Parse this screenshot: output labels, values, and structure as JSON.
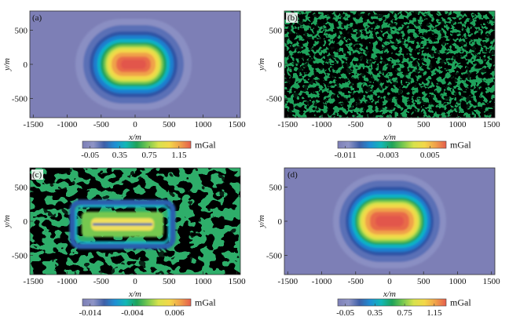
{
  "panels": [
    {
      "label": "(a)",
      "xlabel": "x/m",
      "ylabel": "y/m",
      "xticks": [
        "-1500",
        "-1000",
        "-500",
        "0",
        "500",
        "1000",
        "1500"
      ],
      "yticks": [
        "500",
        "0",
        "-500"
      ],
      "colorbar": {
        "ticks": [
          "-0.05",
          "0.35",
          "0.75",
          "1.15"
        ],
        "unit": "mGal"
      }
    },
    {
      "label": "(b)",
      "xlabel": "x/m",
      "ylabel": "y/m",
      "xticks": [
        "-1500",
        "-1000",
        "-500",
        "0",
        "500",
        "1000",
        "1500"
      ],
      "yticks": [
        "500",
        "0",
        "-500"
      ],
      "colorbar": {
        "ticks": [
          "-0.011",
          "-0.003",
          "0.005"
        ],
        "unit": "mGal"
      }
    },
    {
      "label": "(c)",
      "xlabel": "x/m",
      "ylabel": "y/m",
      "xticks": [
        "-1500",
        "-1000",
        "-500",
        "0",
        "500",
        "1000",
        "1500"
      ],
      "yticks": [
        "500",
        "0",
        "-500"
      ],
      "colorbar": {
        "ticks": [
          "-0.014",
          "-0.004",
          "0.006"
        ],
        "unit": "mGal"
      }
    },
    {
      "label": "(d)",
      "xlabel": "x/m",
      "ylabel": "y/m",
      "xticks": [
        "-1500",
        "-1000",
        "-500",
        "0",
        "500",
        "1000",
        "1500"
      ],
      "yticks": [
        "500",
        "0",
        "-500"
      ],
      "colorbar": {
        "ticks": [
          "-0.05",
          "0.35",
          "0.75",
          "1.15"
        ],
        "unit": "mGal"
      }
    }
  ],
  "colors": {
    "colormap": [
      "#7d7fb6",
      "#8f95c6",
      "#3f5fa8",
      "#1f8fd4",
      "#12b7b7",
      "#1ea35a",
      "#76c850",
      "#d7e24c",
      "#f3d84a",
      "#f0a24a",
      "#e55d4c"
    ]
  },
  "chart_data": [
    {
      "type": "heatmap",
      "panel": "(a)",
      "xlabel": "x/m",
      "ylabel": "y/m",
      "xlim": [
        -1550,
        1550
      ],
      "ylim": [
        -780,
        780
      ],
      "field": "smooth elongated positive anomaly centred at (0, 0), peak near 1.3 mGal, background near -0.05 mGal",
      "colorbar_ticks": [
        -0.05,
        0.35,
        0.75,
        1.15
      ],
      "unit": "mGal"
    },
    {
      "type": "heatmap",
      "panel": "(b)",
      "xlabel": "x/m",
      "ylabel": "y/m",
      "xlim": [
        -1550,
        1550
      ],
      "ylim": [
        -780,
        780
      ],
      "field": "random noise",
      "colorbar_ticks": [
        -0.011,
        -0.003,
        0.005
      ],
      "unit": "mGal"
    },
    {
      "type": "heatmap",
      "panel": "(c)",
      "xlabel": "x/m",
      "ylabel": "y/m",
      "xlim": [
        -1550,
        1550
      ],
      "ylim": [
        -780,
        780
      ],
      "field": "residual with rectangular outline around the body",
      "colorbar_ticks": [
        -0.014,
        -0.004,
        0.006
      ],
      "unit": "mGal"
    },
    {
      "type": "heatmap",
      "panel": "(d)",
      "xlabel": "x/m",
      "ylabel": "y/m",
      "xlim": [
        -1550,
        1550
      ],
      "ylim": [
        -780,
        780
      ],
      "field": "smooth elongated positive anomaly centred at (0, 0), slightly narrower than (a)",
      "colorbar_ticks": [
        -0.05,
        0.35,
        0.75,
        1.15
      ],
      "unit": "mGal"
    }
  ]
}
